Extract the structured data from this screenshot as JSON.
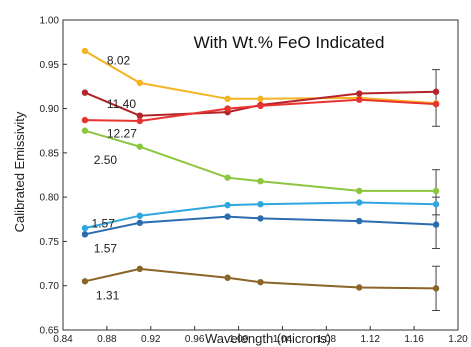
{
  "chart_data": {
    "type": "line",
    "title": "With Wt.% FeO Indicated",
    "xlabel": "Wavelength (microns)",
    "ylabel": "Calibrated Emissivity",
    "xlim": [
      0.84,
      1.2
    ],
    "ylim": [
      0.65,
      1.0
    ],
    "xticks": [
      "0.84",
      "0.88",
      "0.92",
      "0.96",
      "1.00",
      "1.04",
      "1.08",
      "1.12",
      "1.16",
      "1.20"
    ],
    "yticks": [
      "0.65",
      "0.70",
      "0.75",
      "0.80",
      "0.85",
      "0.90",
      "0.95",
      "1.00"
    ],
    "grid": false,
    "x": [
      0.86,
      0.91,
      0.99,
      1.02,
      1.11,
      1.18
    ],
    "series": [
      {
        "label": "8.02",
        "color": "#f5b323",
        "values": [
          0.965,
          0.929,
          0.911,
          0.911,
          0.912,
          0.906
        ]
      },
      {
        "label": "11.40",
        "color": "#b5242b",
        "values": [
          0.918,
          0.892,
          0.896,
          0.904,
          0.917,
          0.919
        ]
      },
      {
        "label": "12.27",
        "color": "#e8332f",
        "values": [
          0.887,
          0.886,
          0.9,
          0.903,
          0.91,
          0.905
        ]
      },
      {
        "label": "2.50",
        "color": "#8cc63f",
        "values": [
          0.875,
          0.857,
          0.822,
          0.818,
          0.807,
          0.807
        ]
      },
      {
        "label": "1.57",
        "color": "#2ea7e0",
        "values": [
          0.765,
          0.779,
          0.791,
          0.792,
          0.794,
          0.792
        ]
      },
      {
        "label": "1.57",
        "color": "#2b6cb0",
        "values": [
          0.758,
          0.771,
          0.778,
          0.776,
          0.773,
          0.769
        ]
      },
      {
        "label": "1.31",
        "color": "#8b6428",
        "values": [
          0.705,
          0.719,
          0.709,
          0.704,
          0.698,
          0.697
        ]
      }
    ],
    "error_bars": [
      {
        "x": 1.18,
        "low": 0.88,
        "high": 0.944
      },
      {
        "x": 1.18,
        "low": 0.78,
        "high": 0.831
      },
      {
        "x": 1.18,
        "low": 0.742,
        "high": 0.8
      },
      {
        "x": 1.18,
        "low": 0.672,
        "high": 0.722
      }
    ],
    "annotations": [
      {
        "text": "8.02",
        "x": 0.88,
        "y": 0.954
      },
      {
        "text": "11.40",
        "x": 0.88,
        "y": 0.905
      },
      {
        "text": "12.27",
        "x": 0.88,
        "y": 0.872
      },
      {
        "text": "2.50",
        "x": 0.868,
        "y": 0.842
      },
      {
        "text": "1.57",
        "x": 0.866,
        "y": 0.77
      },
      {
        "text": "1.57",
        "x": 0.868,
        "y": 0.742
      },
      {
        "text": "1.31",
        "x": 0.87,
        "y": 0.689
      }
    ]
  }
}
